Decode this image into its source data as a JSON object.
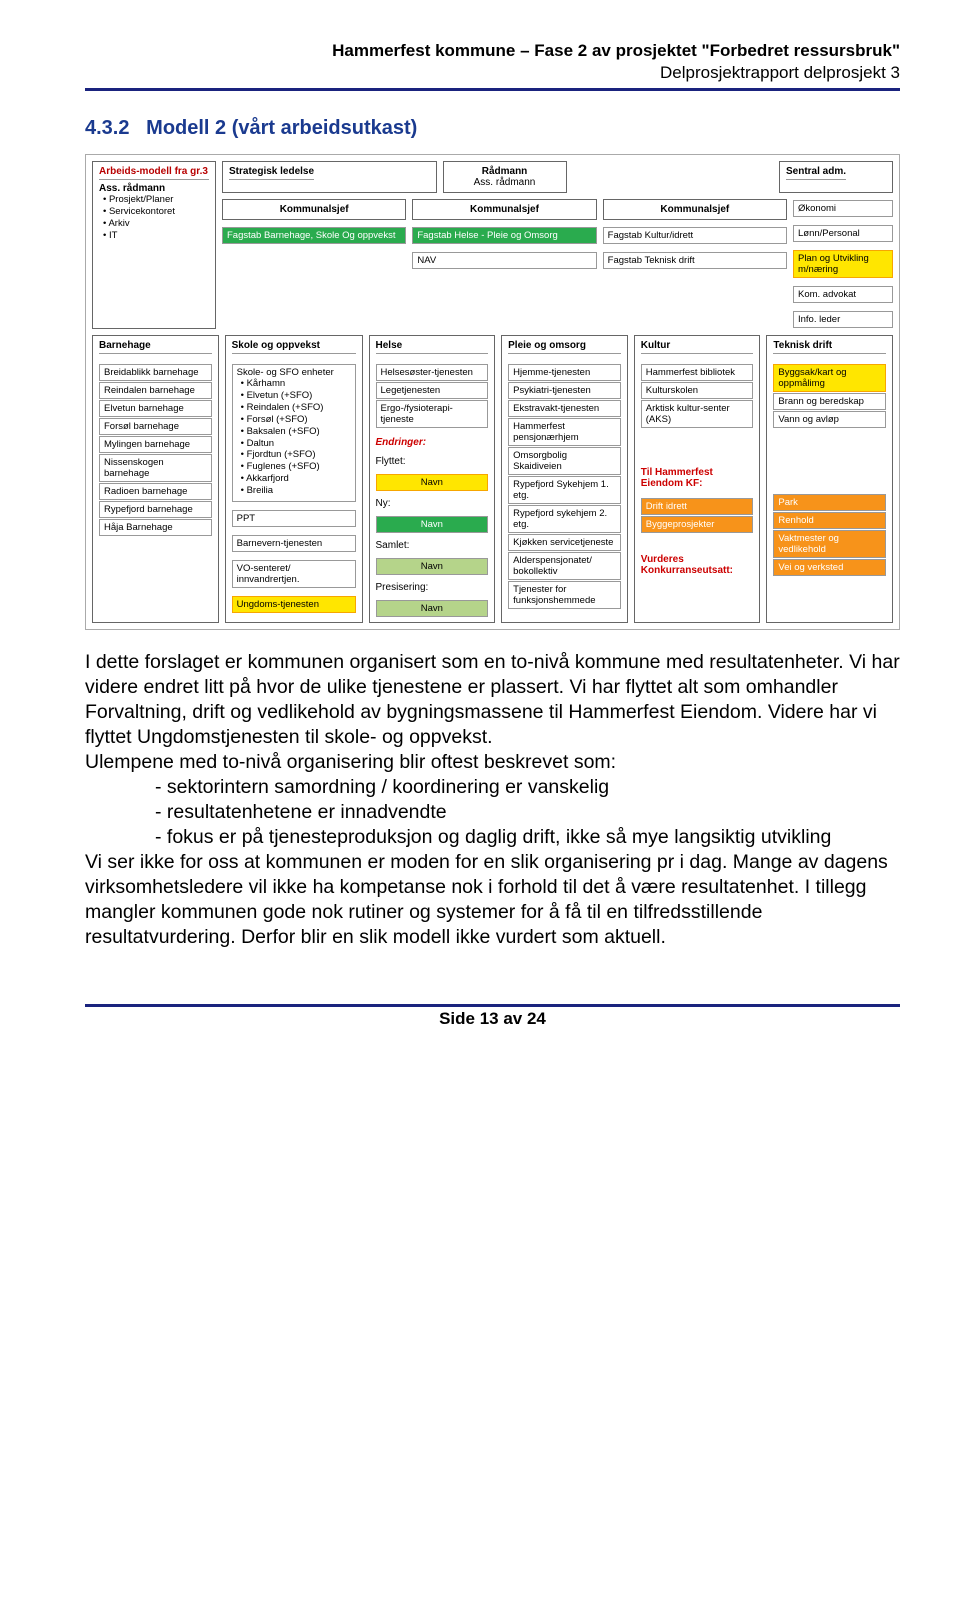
{
  "header": {
    "l1": "Hammerfest kommune – Fase 2 av prosjektet \"Forbedret ressursbruk\"",
    "l2": "Delprosjektrapport delprosjekt 3"
  },
  "section": {
    "num": "4.3.2",
    "title": "Modell 2 (vårt arbeidsutkast)"
  },
  "diag": {
    "model_title": "Arbeids-modell fra gr.3",
    "ass_rad": "Ass. rådmann",
    "ass_items": [
      "Prosjekt/Planer",
      "Servicekontoret",
      "Arkiv",
      "IT"
    ],
    "strat": "Strategisk ledelse",
    "rad": "Rådmann",
    "ass_rad2": "Ass. rådmann",
    "komm": "Kommunalsjef",
    "fb_skole": "Fagstab Barnehage, Skole Og oppvekst",
    "fb_helse": "Fagstab Helse - Pleie og Omsorg",
    "nav": "NAV",
    "fb_kultur": "Fagstab Kultur/idrett",
    "fb_teknisk": "Fagstab Teknisk drift",
    "sentral": "Sentral adm.",
    "sentral_items": [
      "Økonomi",
      "Lønn/Personal",
      "Plan og Utvikling m/næring",
      "Kom. advokat",
      "Info. leder"
    ],
    "c1": {
      "h": "Barnehage",
      "items": [
        "Breidablikk barnehage",
        "Reindalen barnehage",
        "Elvetun barnehage",
        "Forsøl barnehage",
        "Mylingen barnehage",
        "Nissenskogen barnehage",
        "Radioen barnehage",
        "Rypefjord barnehage",
        "Håja Barnehage"
      ]
    },
    "c2": {
      "h": "Skole og oppvekst",
      "sfo": "Skole- og SFO enheter",
      "sfo_items": [
        "Kårhamn",
        "Elvetun (+SFO)",
        "Reindalen (+SFO)",
        "Forsøl (+SFO)",
        "Baksalen (+SFO)",
        "Daltun",
        "Fjordtun (+SFO)",
        "Fuglenes (+SFO)",
        "Akkarfjord",
        "Breilia"
      ],
      "ppt": "PPT",
      "barnevern": "Barnevern-tjenesten",
      "vo": "VO-senteret/ innvandrertjen.",
      "ungdom": "Ungdoms-tjenesten"
    },
    "c3": {
      "h": "Helse",
      "items": [
        "Helsesøster-tjenesten",
        "Legetjenesten",
        "Ergo-/fysioterapi-tjeneste"
      ],
      "endr": "Endringer:",
      "flyttet": "Flyttet:",
      "ny": "Ny:",
      "samlet": "Samlet:",
      "pres": "Presisering:",
      "navn": "Navn"
    },
    "c4": {
      "h": "Pleie og omsorg",
      "items": [
        "Hjemme-tjenesten",
        "Psykiatri-tjenesten",
        "Ekstravakt-tjenesten",
        "Hammerfest pensjonærhjem",
        "Omsorgbolig Skaidiveien",
        "Rypefjord Sykehjem 1. etg.",
        "Rypefjord sykehjem 2. etg.",
        "Kjøkken servicetjeneste",
        "Alderspensjonatet/ bokollektiv",
        "Tjenester for funksjonshemmede"
      ]
    },
    "c5": {
      "h": "Kultur",
      "items": [
        "Hammerfest bibliotek",
        "Kulturskolen",
        "Arktisk kultur-senter (AKS)"
      ],
      "kf_h": "Til Hammerfest Eiendom KF:",
      "kf": [
        "Drift idrett",
        "Byggeprosjekter"
      ],
      "vurd": "Vurderes Konkurranseutsatt:"
    },
    "c6": {
      "h": "Teknisk drift",
      "items": [
        {
          "t": "Byggsak/kart og oppmålimg",
          "y": 1
        },
        {
          "t": "Brann og beredskap"
        },
        {
          "t": "Vann og avløp"
        },
        {
          "t": "Park",
          "o": 1
        },
        {
          "t": "Renhold",
          "o": 1
        },
        {
          "t": "Vaktmester og vedlikehold",
          "o": 1
        },
        {
          "t": "Vei og verksted",
          "o": 1
        }
      ]
    }
  },
  "body": {
    "p1": "I dette forslaget er kommunen organisert som en to-nivå kommune med resultatenheter. Vi har videre endret litt på hvor de ulike tjenestene er plassert. Vi har flyttet alt som omhandler Forvaltning, drift og vedlikehold av bygningsmassene til Hammerfest Eiendom. Videre har vi flyttet Ungdomstjenesten til skole- og oppvekst.",
    "p2": "Ulempene med to-nivå organisering blir oftest beskrevet som:",
    "dash": [
      "sektorintern samordning / koordinering er vanskelig",
      "resultatenhetene er innadvendte",
      "fokus er på tjenesteproduksjon og daglig drift, ikke så mye langsiktig utvikling"
    ],
    "p3": "Vi ser ikke for oss at kommunen er moden for en slik organisering pr i dag. Mange av dagens virksomhetsledere vil ikke ha kompetanse nok i forhold til det å være resultatenhet. I tillegg mangler kommunen gode nok rutiner og systemer for å få til en tilfredsstillende resultatvurdering. Derfor blir en slik modell ikke vurdert som aktuell."
  },
  "footer": "Side 13 av 24"
}
